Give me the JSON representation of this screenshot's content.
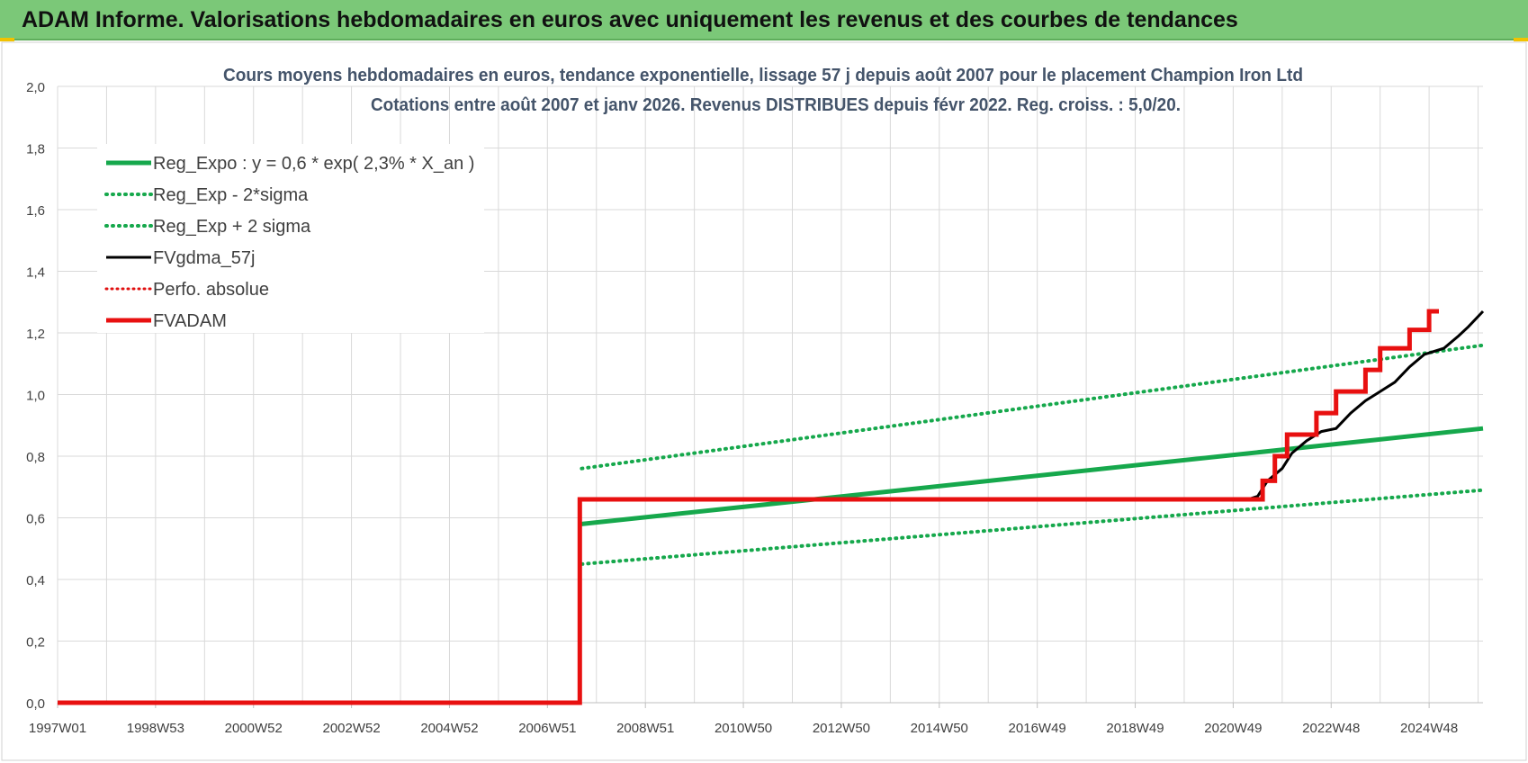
{
  "banner_title": "ADAM Informe. Valorisations hebdomadaires en euros avec uniquement les revenus et des courbes de tendances",
  "colors": {
    "banner": "#7bc878",
    "reg_expo": "#16a84c",
    "sigma": "#16a84c",
    "fvgdma": "#000000",
    "perfo": "#e01010",
    "fvadam": "#e81010",
    "grid": "#d9d9d9",
    "text": "#404040",
    "title": "#44546a"
  },
  "chart_data": {
    "type": "line",
    "title": "Cours moyens hebdomadaires en euros, tendance exponentielle, lissage 57 j depuis août 2007 pour le placement Champion Iron Ltd",
    "subtitle": "Cotations entre août 2007 et janv 2026. Revenus DISTRIBUES depuis févr 2022. Reg. croiss. : 5,0/20.",
    "xlabel": "",
    "ylabel": "",
    "x_tick_labels": [
      "1997W01",
      "1998W53",
      "2000W52",
      "2002W52",
      "2004W52",
      "2006W51",
      "2008W51",
      "2010W50",
      "2012W50",
      "2014W50",
      "2016W49",
      "2018W49",
      "2020W49",
      "2022W48",
      "2024W48"
    ],
    "x_tick_years": [
      1997.0,
      1999.0,
      2001.0,
      2003.0,
      2005.0,
      2007.0,
      2009.0,
      2011.0,
      2013.0,
      2015.0,
      2017.0,
      2019.0,
      2021.0,
      2023.0,
      2025.0
    ],
    "x_range": [
      1997.0,
      2026.1
    ],
    "y_tick_labels": [
      "0,0",
      "0,2",
      "0,4",
      "0,6",
      "0,8",
      "1,0",
      "1,2",
      "1,4",
      "1,6",
      "1,8",
      "2,0"
    ],
    "ylim": [
      0,
      2.0
    ],
    "grid": true,
    "legend_position": "top-left",
    "series": [
      {
        "name": "Reg_Expo : y = 0,6 * exp( 2,3% *  X_an )",
        "style": "solid-thick",
        "points": [
          [
            2007.7,
            0.58
          ],
          [
            2026.1,
            0.89
          ]
        ]
      },
      {
        "name": "Reg_Exp - 2*sigma",
        "style": "dotted",
        "points": [
          [
            2007.7,
            0.45
          ],
          [
            2026.1,
            0.69
          ]
        ]
      },
      {
        "name": "Reg_Exp + 2 sigma",
        "style": "dotted",
        "points": [
          [
            2007.7,
            0.76
          ],
          [
            2026.1,
            1.16
          ]
        ]
      },
      {
        "name": "FVgdma_57j",
        "style": "solid-black",
        "points": [
          [
            1997.0,
            0.0
          ],
          [
            2007.66,
            0.0
          ],
          [
            2007.66,
            0.66
          ],
          [
            2021.3,
            0.66
          ],
          [
            2021.5,
            0.67
          ],
          [
            2021.7,
            0.72
          ],
          [
            2022.0,
            0.76
          ],
          [
            2022.2,
            0.81
          ],
          [
            2022.5,
            0.85
          ],
          [
            2022.8,
            0.88
          ],
          [
            2023.1,
            0.89
          ],
          [
            2023.4,
            0.94
          ],
          [
            2023.7,
            0.98
          ],
          [
            2024.0,
            1.01
          ],
          [
            2024.3,
            1.04
          ],
          [
            2024.6,
            1.09
          ],
          [
            2024.9,
            1.13
          ],
          [
            2025.3,
            1.15
          ],
          [
            2025.6,
            1.19
          ],
          [
            2025.8,
            1.22
          ],
          [
            2026.1,
            1.27
          ]
        ]
      },
      {
        "name": "Perfo. absolue",
        "style": "dotted-red",
        "points": []
      },
      {
        "name": "FVADAM",
        "style": "solid-red",
        "points": [
          [
            1997.0,
            0.0
          ],
          [
            2007.66,
            0.0
          ],
          [
            2007.66,
            0.66
          ],
          [
            2021.6,
            0.66
          ],
          [
            2021.6,
            0.72
          ],
          [
            2021.85,
            0.72
          ],
          [
            2021.85,
            0.8
          ],
          [
            2022.1,
            0.8
          ],
          [
            2022.1,
            0.87
          ],
          [
            2022.7,
            0.87
          ],
          [
            2022.7,
            0.94
          ],
          [
            2023.1,
            0.94
          ],
          [
            2023.1,
            1.01
          ],
          [
            2023.7,
            1.01
          ],
          [
            2023.7,
            1.08
          ],
          [
            2024.0,
            1.08
          ],
          [
            2024.0,
            1.15
          ],
          [
            2024.6,
            1.15
          ],
          [
            2024.6,
            1.21
          ],
          [
            2025.0,
            1.21
          ],
          [
            2025.0,
            1.27
          ],
          [
            2025.2,
            1.27
          ]
        ]
      }
    ]
  }
}
